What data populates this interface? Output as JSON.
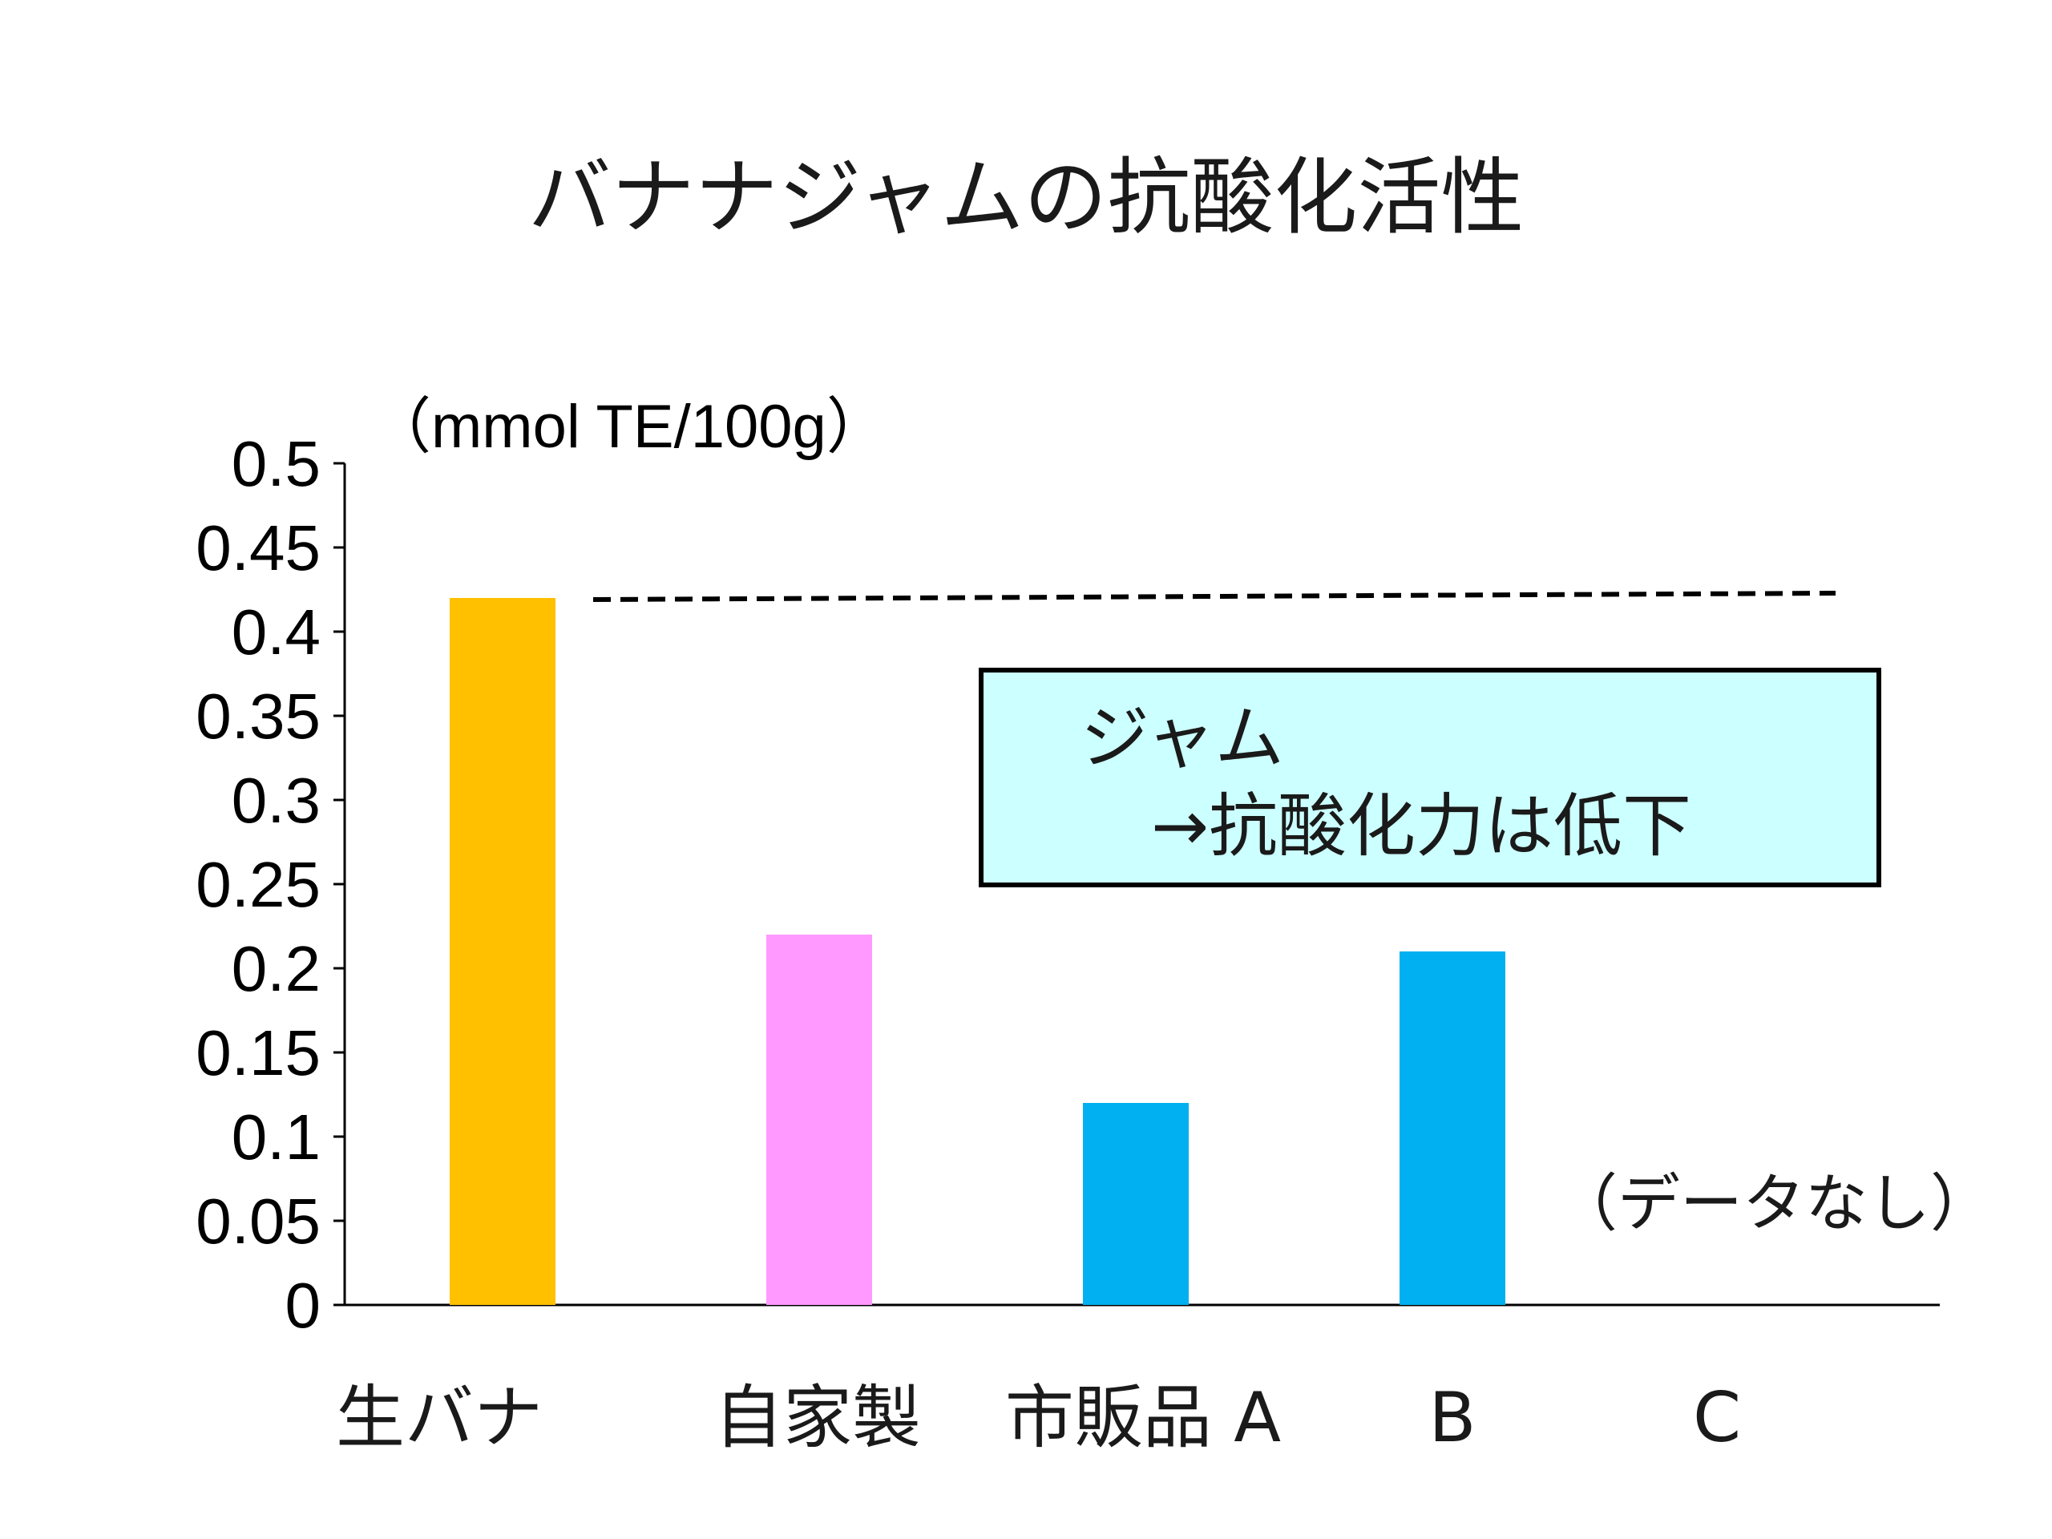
{
  "chart_data": {
    "type": "bar",
    "title": "バナナジャムの抗酸化活性",
    "ylabel": "（mmol TE/100g）",
    "ylim": [
      0,
      0.5
    ],
    "yticks": [
      "0",
      "0.05",
      "0.1",
      "0.15",
      "0.2",
      "0.25",
      "0.3",
      "0.35",
      "0.4",
      "0.45",
      "0.5"
    ],
    "yticks_values": [
      0,
      0.05,
      0.1,
      0.15,
      0.2,
      0.25,
      0.3,
      0.35,
      0.4,
      0.45,
      0.5
    ],
    "categories": [
      "生バナ",
      "自家製",
      "市販品Ａ",
      "Ｂ",
      "Ｃ"
    ],
    "category_labels": [
      "生バナ",
      "自家製",
      "市販品 A",
      "B",
      "C"
    ],
    "values": [
      0.42,
      0.22,
      0.12,
      0.21,
      null
    ],
    "bar_colors": [
      "#FFC000",
      "#FF99FF",
      "#00B0F0",
      "#00B0F0",
      "#00B0F0"
    ],
    "reference_line": {
      "value": 0.42,
      "style": "dashed",
      "color": "#000000"
    },
    "annotations": {
      "no_data": "（データなし）",
      "callout_line1": "ジャム",
      "callout_line2": "→抗酸化力は低下",
      "callout_fill": "#CCFFFF"
    },
    "grid": false,
    "legend": "none"
  }
}
